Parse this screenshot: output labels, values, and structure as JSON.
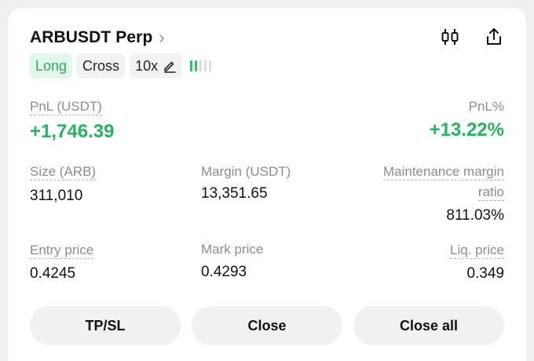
{
  "position": {
    "symbol": "ARBUSDT Perp",
    "side": "Long",
    "margin_mode": "Cross",
    "leverage": "10x",
    "leverage_bars_filled": 2,
    "leverage_bars_total": 5
  },
  "header_icons": [
    "chart-icon",
    "share-icon"
  ],
  "stats": {
    "pnl_label": "PnL (USDT)",
    "pnl_value": "+1,746.39",
    "pnl_pct_label": "PnL%",
    "pnl_pct_value": "+13.22%",
    "size_label": "Size (ARB)",
    "size_value": "311,010",
    "margin_label": "Margin (USDT)",
    "margin_value": "13,351.65",
    "mmr_label_line1": "Maintenance margin",
    "mmr_label_line2": "ratio",
    "mmr_value": "811.03%",
    "entry_label": "Entry price",
    "entry_value": "0.4245",
    "mark_label": "Mark price",
    "mark_value": "0.4293",
    "liq_label": "Liq. price",
    "liq_value": "0.349"
  },
  "actions": {
    "tpsl": "TP/SL",
    "close": "Close",
    "close_all": "Close all"
  },
  "colors": {
    "positive": "#24b55e",
    "long_tag_bg": "#e3f6ea"
  }
}
